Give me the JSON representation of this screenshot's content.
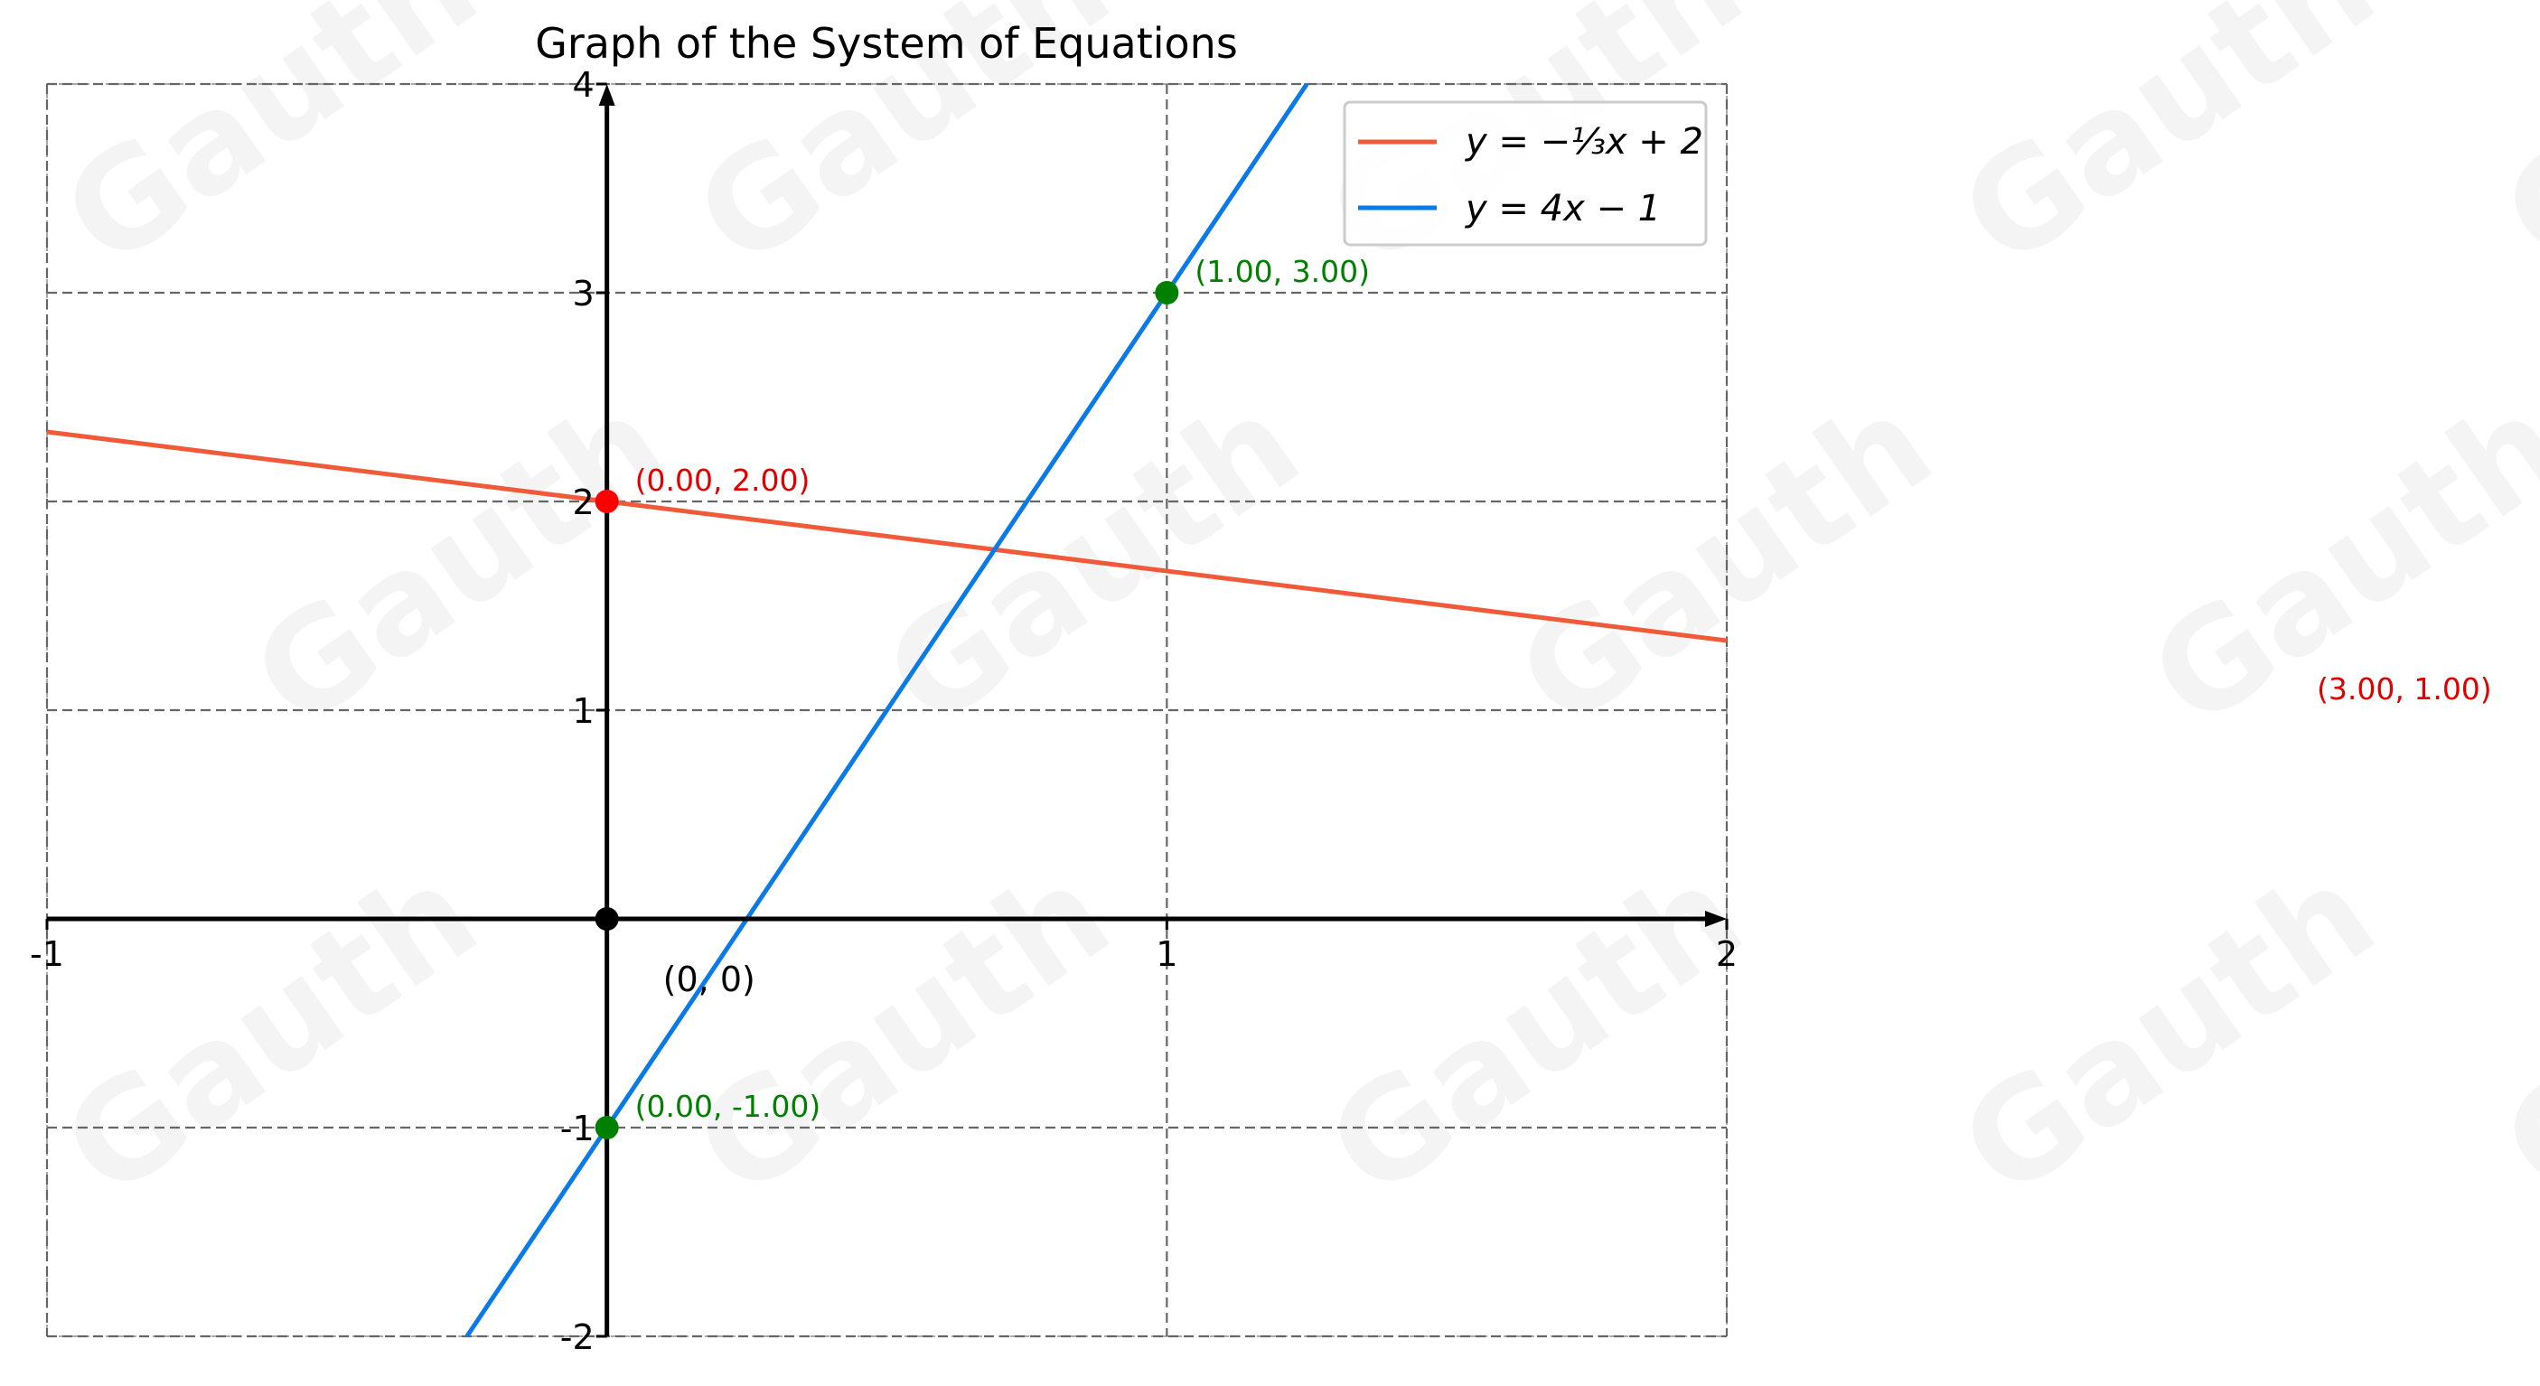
{
  "chart_data": {
    "type": "line",
    "title": "Graph of the System of Equations",
    "xlim": [
      -1,
      2
    ],
    "ylim": [
      -2,
      4
    ],
    "x_ticks": [
      "-1",
      "1",
      "2"
    ],
    "y_ticks": [
      "4",
      "3",
      "2",
      "1",
      "-1",
      "-2"
    ],
    "x_tick_values": [
      -1,
      1,
      2
    ],
    "y_tick_values": [
      4,
      3,
      2,
      1,
      -1,
      -2
    ],
    "grid": true,
    "legend_position": "top-right",
    "series": [
      {
        "name": "y = −⅓x + 2",
        "slope": -0.3333,
        "intercept": 2,
        "color": "#f05a38"
      },
      {
        "name": "y = 4x − 1",
        "slope": 4,
        "intercept": -1,
        "color": "#0a7ae8"
      }
    ],
    "points": [
      {
        "x": 0,
        "y": 2,
        "label": "(0.00, 2.00)",
        "color": "#ff0000",
        "label_color": "#e00000"
      },
      {
        "x": 1,
        "y": 3,
        "label": "(1.00, 3.00)",
        "color": "#008000",
        "label_color": "#008000"
      },
      {
        "x": 0,
        "y": -1,
        "label": "(0.00, -1.00)",
        "color": "#008000",
        "label_color": "#008000"
      },
      {
        "x": 0,
        "y": 0,
        "label": "(0, 0)",
        "color": "#000000",
        "label_color": "#000000"
      }
    ],
    "extra_annotation": {
      "label": "(3.00, 1.00)",
      "color": "#e00000"
    }
  },
  "watermark": "Gauth"
}
